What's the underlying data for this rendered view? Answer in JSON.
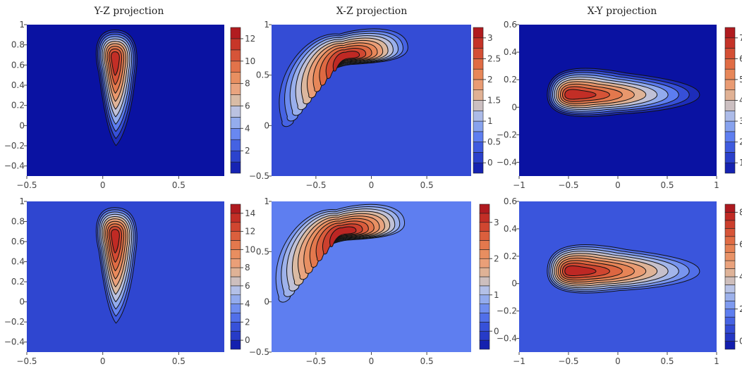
{
  "chart_data": [
    {
      "type": "contour",
      "title": "Y-Z projection",
      "xlim": [
        -0.5,
        0.8
      ],
      "ylim": [
        -0.5,
        1.0
      ],
      "xticks": [
        "−0.5",
        "0",
        "0.5"
      ],
      "xtick_values": [
        -0.5,
        0,
        0.5
      ],
      "yticks": [
        "−0.4",
        "−0.2",
        "0",
        "0.2",
        "0.4",
        "0.6",
        "0.8",
        "1"
      ],
      "ytick_values": [
        -0.4,
        -0.2,
        0,
        0.2,
        0.4,
        0.6,
        0.8,
        1.0
      ],
      "colorbar": {
        "min": 0,
        "max": 13,
        "levels": 13,
        "ticks": [
          "2",
          "4",
          "6",
          "8",
          "10",
          "12"
        ],
        "tick_values": [
          2,
          4,
          6,
          8,
          10,
          12
        ]
      },
      "peak": {
        "x": 0.08,
        "y": 0.69,
        "value": 13
      },
      "background_level": 0
    },
    {
      "type": "contour",
      "title": "X-Z projection",
      "xlim": [
        -0.9,
        0.9
      ],
      "ylim": [
        -0.5,
        1.0
      ],
      "xticks": [
        "−0.5",
        "0",
        "0.5"
      ],
      "xtick_values": [
        -0.5,
        0,
        0.5
      ],
      "yticks": [
        "−0.5",
        "0",
        "0.5",
        "1"
      ],
      "ytick_values": [
        -0.5,
        0,
        0.5,
        1.0
      ],
      "colorbar": {
        "min": -0.25,
        "max": 3.25,
        "levels": 14,
        "ticks": [
          "0",
          "0.5",
          "1",
          "1.5",
          "2",
          "2.5",
          "3"
        ],
        "tick_values": [
          0,
          0.5,
          1,
          1.5,
          2,
          2.5,
          3
        ]
      },
      "peak": {
        "x": -0.22,
        "y": 0.68,
        "value": 3.25
      },
      "background_level": 0.25
    },
    {
      "type": "contour",
      "title": "X-Y projection",
      "xlim": [
        -1.0,
        1.0
      ],
      "ylim": [
        -0.5,
        0.6
      ],
      "xticks": [
        "−1",
        "−0.5",
        "0",
        "0.5",
        "1"
      ],
      "xtick_values": [
        -1,
        -0.5,
        0,
        0.5,
        1
      ],
      "yticks": [
        "−0.4",
        "−0.2",
        "0",
        "0.2",
        "0.4",
        "0.6"
      ],
      "ytick_values": [
        -0.4,
        -0.2,
        0,
        0.2,
        0.4,
        0.6
      ],
      "colorbar": {
        "min": 0.5,
        "max": 7.5,
        "levels": 14,
        "ticks": [
          "1",
          "2",
          "3",
          "4",
          "5",
          "6",
          "7"
        ],
        "tick_values": [
          1,
          2,
          3,
          4,
          5,
          6,
          7
        ]
      },
      "peak": {
        "x": -0.52,
        "y": 0.09,
        "value": 7.5
      },
      "background_level": 0.5
    },
    {
      "type": "contour",
      "title": "",
      "xlim": [
        -0.5,
        0.8
      ],
      "ylim": [
        -0.5,
        1.0
      ],
      "xticks": [
        "−0.5",
        "0",
        "0.5"
      ],
      "xtick_values": [
        -0.5,
        0,
        0.5
      ],
      "yticks": [
        "−0.4",
        "−0.2",
        "0",
        "0.2",
        "0.4",
        "0.6",
        "0.8",
        "1"
      ],
      "ytick_values": [
        -0.4,
        -0.2,
        0,
        0.2,
        0.4,
        0.6,
        0.8,
        1.0
      ],
      "colorbar": {
        "min": -1,
        "max": 15,
        "levels": 16,
        "ticks": [
          "0",
          "2",
          "4",
          "6",
          "8",
          "10",
          "12",
          "14"
        ],
        "tick_values": [
          0,
          2,
          4,
          6,
          8,
          10,
          12,
          14
        ]
      },
      "peak": {
        "x": 0.08,
        "y": 0.68,
        "value": 15
      },
      "background_level": 1
    },
    {
      "type": "contour",
      "title": "",
      "xlim": [
        -0.9,
        0.9
      ],
      "ylim": [
        -0.5,
        1.0
      ],
      "xticks": [
        "−0.5",
        "0",
        "0.5"
      ],
      "xtick_values": [
        -0.5,
        0,
        0.5
      ],
      "yticks": [
        "−0.5",
        "0",
        "0.5",
        "1"
      ],
      "ytick_values": [
        -0.5,
        0,
        0.5,
        1.0
      ],
      "colorbar": {
        "min": -0.5,
        "max": 3.5,
        "levels": 16,
        "ticks": [
          "0",
          "1",
          "2",
          "3"
        ],
        "tick_values": [
          0,
          1,
          2,
          3
        ]
      },
      "peak": {
        "x": -0.25,
        "y": 0.69,
        "value": 3.5
      },
      "background_level": 0.5
    },
    {
      "type": "contour",
      "title": "",
      "xlim": [
        -1.0,
        1.0
      ],
      "ylim": [
        -0.5,
        0.6
      ],
      "xticks": [
        "−1",
        "−0.5",
        "0",
        "0.5",
        "1"
      ],
      "xtick_values": [
        -1,
        -0.5,
        0,
        0.5,
        1
      ],
      "yticks": [
        "−0.4",
        "−0.2",
        "0",
        "0.2",
        "0.4",
        "0.6"
      ],
      "ytick_values": [
        -0.4,
        -0.2,
        0,
        0.2,
        0.4,
        0.6
      ],
      "colorbar": {
        "min": -0.5,
        "max": 8.5,
        "levels": 18,
        "ticks": [
          "0",
          "2",
          "4",
          "6",
          "8"
        ],
        "tick_values": [
          0,
          2,
          4,
          6,
          8
        ]
      },
      "peak": {
        "x": -0.52,
        "y": 0.09,
        "value": 8.5
      },
      "background_level": 1
    }
  ],
  "colorscale": [
    "#0a12a2",
    "#2437c4",
    "#3a55dc",
    "#5e7ef0",
    "#8ea8ee",
    "#b8c3e6",
    "#d9bca6",
    "#eaa27c",
    "#e88b5c",
    "#e06c44",
    "#d24a32",
    "#c02a24",
    "#a4101c"
  ]
}
